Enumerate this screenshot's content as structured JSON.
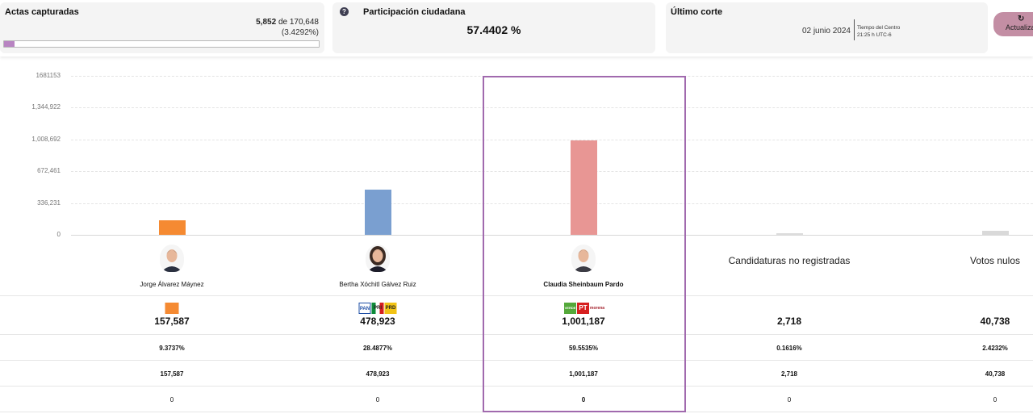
{
  "header": {
    "actas": {
      "title": "Actas capturadas",
      "captured": "5,852",
      "of_label": "de",
      "total": "170,648",
      "percent": "(3.4292%)",
      "progress_fraction": 0.034292
    },
    "participacion": {
      "title": "Participación ciudadana",
      "value": "57.4402 %",
      "help_icon": "question-icon"
    },
    "corte": {
      "title": "Último corte",
      "date": "02 junio 2024",
      "tz_line1": "Tiempo del Centro",
      "tz_line2": "21:25 h UTC-6"
    },
    "refresh": {
      "label": "Actualizar",
      "icon": "refresh-icon"
    }
  },
  "chart_data": {
    "type": "bar",
    "categories": [
      "Jorge Álvarez Máynez",
      "Bertha Xóchitl Gálvez Ruiz",
      "Claudia Sheinbaum Pardo",
      "Candidaturas no registradas",
      "Votos nulos"
    ],
    "values": [
      157587,
      478923,
      1001187,
      2718,
      40738
    ],
    "colors": [
      "#f58a32",
      "#7a9fd0",
      "#e89694",
      "#dcdcdc",
      "#d9d9d9"
    ],
    "ylim": [
      0,
      1681153
    ],
    "yticks": [
      0,
      336231,
      672461,
      1008692,
      1344922,
      1681153
    ],
    "ytick_labels": [
      "0",
      "336,231",
      "672,461",
      "1,008,692",
      "1,344,922",
      "1681153"
    ],
    "grid": true,
    "highlighted": "Claudia Sheinbaum Pardo"
  },
  "candidates": [
    {
      "name": "Jorge Álvarez Máynez",
      "avatar": "candidate-photo",
      "parties": [
        {
          "name": "MC",
          "color": "#f58a32"
        }
      ],
      "votes": "157,587",
      "percent": "9.3737%",
      "votes_row": "157,587",
      "extra": "0"
    },
    {
      "name": "Bertha Xóchitl Gálvez Ruiz",
      "avatar": "candidate-photo",
      "parties": [
        {
          "name": "PAN",
          "color": "#1f4fa6"
        },
        {
          "name": "PRI",
          "color": "#0d8b3a"
        },
        {
          "name": "PRD",
          "color": "#f2c315"
        }
      ],
      "votes": "478,923",
      "percent": "28.4877%",
      "votes_row": "478,923",
      "extra": "0"
    },
    {
      "name": "Claudia Sheinbaum Pardo",
      "avatar": "candidate-photo",
      "parties": [
        {
          "name": "VERDE",
          "color": "#54a83a"
        },
        {
          "name": "PT",
          "color": "#d61f1f"
        },
        {
          "name": "morena",
          "color": "#a5232e"
        }
      ],
      "votes": "1,001,187",
      "percent": "59.5535%",
      "votes_row": "1,001,187",
      "extra": "0"
    },
    {
      "name": "Candidaturas no registradas",
      "votes": "2,718",
      "percent": "0.1616%",
      "votes_row": "2,718",
      "extra": "0"
    },
    {
      "name": "Votos nulos",
      "votes": "40,738",
      "percent": "2.4232%",
      "votes_row": "40,738",
      "extra": "0"
    }
  ]
}
